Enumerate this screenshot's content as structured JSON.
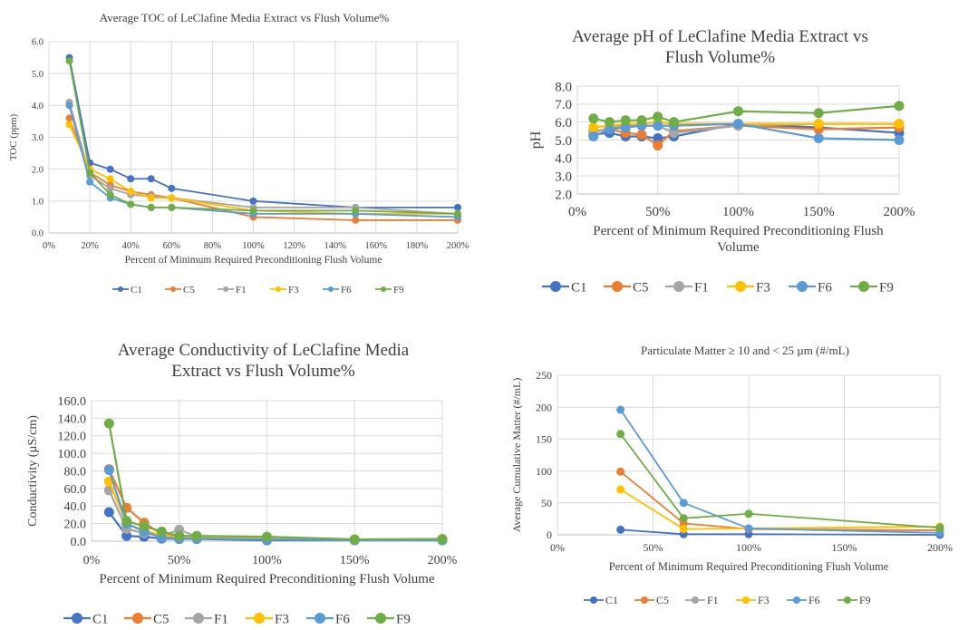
{
  "series_colors": {
    "C1": "#4472C4",
    "C5": "#ED7D31",
    "F1": "#A5A5A5",
    "F3": "#FFC000",
    "F6": "#5B9BD5",
    "F9": "#70AD47"
  },
  "chart_data": [
    {
      "id": "toc",
      "type": "line",
      "title": [
        "Average TOC of LeClafine Media Extract vs Flush Volume%"
      ],
      "xlabel": [
        "Percent of Minimum Required Preconditioning Flush Volume"
      ],
      "ylabel": "TOC (ppm)",
      "xlim": [
        0,
        200
      ],
      "ylim": [
        0,
        6
      ],
      "xticks": [
        0,
        20,
        40,
        60,
        80,
        100,
        120,
        140,
        160,
        180,
        200
      ],
      "xtick_labels": [
        "0%",
        "20%",
        "40%",
        "60%",
        "80%",
        "100%",
        "120%",
        "140%",
        "160%",
        "180%",
        "200%"
      ],
      "yticks": [
        0,
        1,
        2,
        3,
        4,
        5,
        6
      ],
      "ytick_labels": [
        "0.0",
        "1.0",
        "2.0",
        "3.0",
        "4.0",
        "5.0",
        "6.0"
      ],
      "grid": "both",
      "legend_position": "bottom",
      "x": [
        10,
        20,
        30,
        40,
        50,
        60,
        100,
        150,
        200
      ],
      "series": [
        {
          "name": "C1",
          "values": [
            5.5,
            2.2,
            2.0,
            1.7,
            1.7,
            1.4,
            1.0,
            0.8,
            0.8
          ]
        },
        {
          "name": "C5",
          "values": [
            3.6,
            1.9,
            1.5,
            1.3,
            1.2,
            1.1,
            0.5,
            0.4,
            0.4
          ]
        },
        {
          "name": "F1",
          "values": [
            4.1,
            1.8,
            1.4,
            1.2,
            1.15,
            1.1,
            0.8,
            0.8,
            0.6
          ]
        },
        {
          "name": "F3",
          "values": [
            3.4,
            2.0,
            1.7,
            1.3,
            1.1,
            1.1,
            0.7,
            0.6,
            0.6
          ]
        },
        {
          "name": "F6",
          "values": [
            4.0,
            1.6,
            1.1,
            0.9,
            0.8,
            0.8,
            0.6,
            0.6,
            0.5
          ]
        },
        {
          "name": "F9",
          "values": [
            5.4,
            1.9,
            1.2,
            0.9,
            0.8,
            0.8,
            0.7,
            0.7,
            0.6
          ]
        }
      ]
    },
    {
      "id": "ph",
      "type": "line",
      "title": [
        "Average pH of LeClafine Media Extract vs",
        "Flush Volume%"
      ],
      "xlabel": [
        "Percent of Minimum Required Preconditioning Flush",
        "Volume"
      ],
      "ylabel": "pH",
      "xlim": [
        0,
        200
      ],
      "ylim": [
        2,
        8
      ],
      "xticks": [
        0,
        50,
        100,
        150,
        200
      ],
      "xtick_labels": [
        "0%",
        "50%",
        "100%",
        "150%",
        "200%"
      ],
      "yticks": [
        2,
        3,
        4,
        5,
        6,
        7,
        8
      ],
      "ytick_labels": [
        "2.0",
        "3.0",
        "4.0",
        "5.0",
        "6.0",
        "7.0",
        "8.0"
      ],
      "grid": "both",
      "legend_position": "bottom",
      "x": [
        10,
        20,
        30,
        40,
        50,
        60,
        100,
        150,
        200
      ],
      "series": [
        {
          "name": "C1",
          "values": [
            5.3,
            5.4,
            5.2,
            5.2,
            5.1,
            5.2,
            5.9,
            5.7,
            5.4
          ]
        },
        {
          "name": "C5",
          "values": [
            5.5,
            5.6,
            5.4,
            5.3,
            4.7,
            5.5,
            5.8,
            5.6,
            5.7
          ]
        },
        {
          "name": "F1",
          "values": [
            5.4,
            5.7,
            5.8,
            5.8,
            5.8,
            5.4,
            5.8,
            5.9,
            5.9
          ]
        },
        {
          "name": "F3",
          "values": [
            5.7,
            5.8,
            5.9,
            5.9,
            6.0,
            5.9,
            5.9,
            5.9,
            5.9
          ]
        },
        {
          "name": "F6",
          "values": [
            5.2,
            5.6,
            5.7,
            5.8,
            5.8,
            5.8,
            5.9,
            5.1,
            5.0
          ]
        },
        {
          "name": "F9",
          "values": [
            6.2,
            6.0,
            6.1,
            6.1,
            6.3,
            6.0,
            6.6,
            6.5,
            6.9
          ]
        }
      ]
    },
    {
      "id": "conductivity",
      "type": "line",
      "title": [
        "Average Conductivity of LeClafine Media",
        "Extract vs Flush Volume%"
      ],
      "xlabel": [
        "Percent of Minimum Required Preconditioning Flush Volume"
      ],
      "ylabel": "Conductivity (µS/cm)",
      "xlim": [
        0,
        200
      ],
      "ylim": [
        0,
        160
      ],
      "xticks": [
        0,
        50,
        100,
        150,
        200
      ],
      "xtick_labels": [
        "0%",
        "50%",
        "100%",
        "150%",
        "200%"
      ],
      "yticks": [
        0,
        20,
        40,
        60,
        80,
        100,
        120,
        140,
        160
      ],
      "ytick_labels": [
        "0.0",
        "20.0",
        "40.0",
        "60.0",
        "80.0",
        "100.0",
        "120.0",
        "140.0",
        "160.0"
      ],
      "grid": "both",
      "legend_position": "bottom",
      "x": [
        10,
        20,
        30,
        40,
        50,
        60,
        100,
        150,
        200
      ],
      "series": [
        {
          "name": "C1",
          "values": [
            33,
            6,
            5,
            3,
            2.5,
            2.5,
            1,
            1,
            1
          ]
        },
        {
          "name": "C5",
          "values": [
            82,
            38,
            21,
            8,
            5,
            4,
            2,
            1.5,
            1.5
          ]
        },
        {
          "name": "F1",
          "values": [
            58,
            14,
            9,
            6,
            13,
            5,
            3,
            2,
            2
          ]
        },
        {
          "name": "F3",
          "values": [
            68,
            20,
            12,
            7,
            4,
            4,
            3,
            2,
            2.5
          ]
        },
        {
          "name": "F6",
          "values": [
            81,
            20,
            11,
            4,
            3,
            3,
            2,
            1,
            1
          ]
        },
        {
          "name": "F9",
          "values": [
            134,
            23,
            17,
            11,
            6,
            6,
            5,
            2,
            2.5
          ]
        }
      ]
    },
    {
      "id": "particulate",
      "type": "line",
      "title": [
        "Particulate Matter ≥ 10 and < 25 µm (#/mL)"
      ],
      "xlabel": [
        "Percent of Minimum Required Preconditioning Flush Volume"
      ],
      "ylabel": "Average Cumulative Matter (#/mL)",
      "xlim": [
        0,
        200
      ],
      "ylim": [
        0,
        250
      ],
      "xticks": [
        0,
        50,
        100,
        150,
        200
      ],
      "xtick_labels": [
        "0%",
        "50%",
        "100%",
        "150%",
        "200%"
      ],
      "yticks": [
        0,
        50,
        100,
        150,
        200,
        250
      ],
      "ytick_labels": [
        "0",
        "50",
        "100",
        "150",
        "200",
        "250"
      ],
      "grid": "both",
      "legend_position": "bottom",
      "x": [
        33,
        66,
        100,
        200
      ],
      "series": [
        {
          "name": "C1",
          "values": [
            8,
            1,
            1,
            0
          ]
        },
        {
          "name": "C5",
          "values": [
            99,
            18,
            9,
            7
          ]
        },
        {
          "name": "F1",
          "values": [
            null,
            null,
            null,
            null
          ]
        },
        {
          "name": "F3",
          "values": [
            71,
            9,
            10,
            13
          ]
        },
        {
          "name": "F6",
          "values": [
            196,
            50,
            10,
            3
          ]
        },
        {
          "name": "F9",
          "values": [
            158,
            26,
            33,
            11
          ]
        }
      ]
    }
  ]
}
